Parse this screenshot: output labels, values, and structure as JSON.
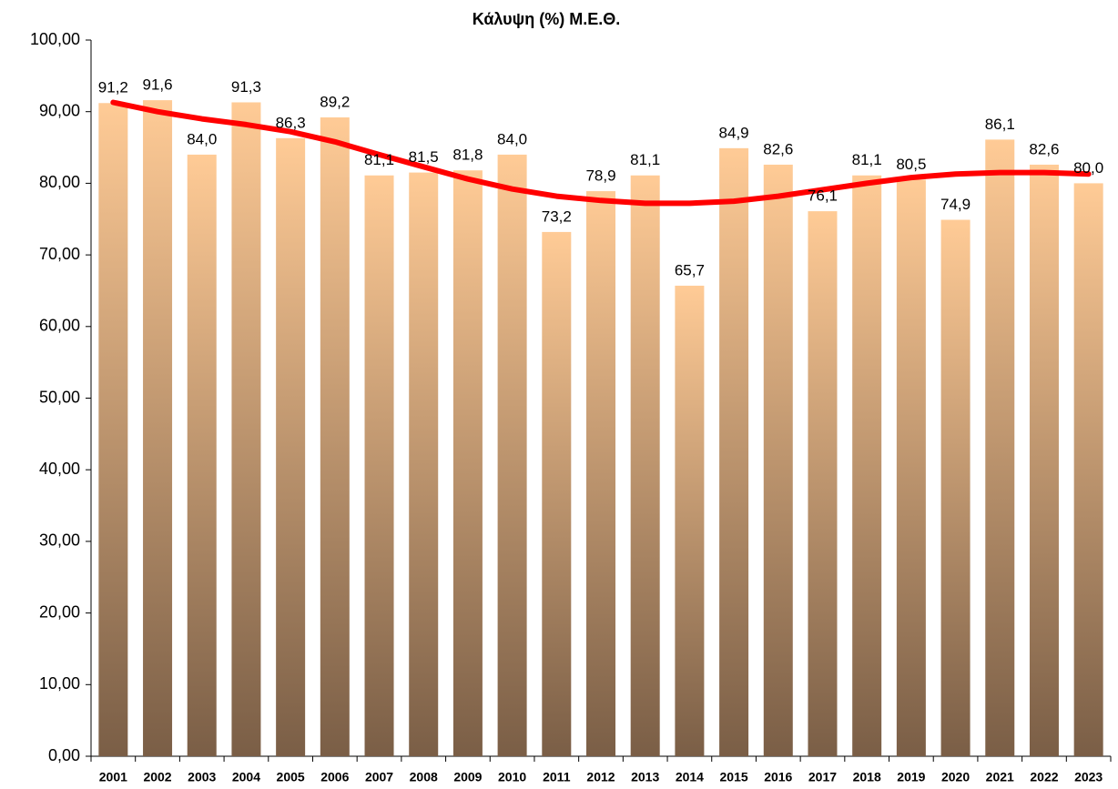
{
  "chart_data": {
    "type": "bar",
    "title": "Κάλυψη (%) Μ.Ε.Θ.",
    "categories": [
      "2001",
      "2002",
      "2003",
      "2004",
      "2005",
      "2006",
      "2007",
      "2008",
      "2009",
      "2010",
      "2011",
      "2012",
      "2013",
      "2014",
      "2015",
      "2016",
      "2017",
      "2018",
      "2019",
      "2020",
      "2021",
      "2022",
      "2023"
    ],
    "values": [
      91.2,
      91.6,
      84.0,
      91.3,
      86.3,
      89.2,
      81.1,
      81.5,
      81.8,
      84.0,
      73.2,
      78.9,
      81.1,
      65.7,
      84.9,
      82.6,
      76.1,
      81.1,
      80.5,
      74.9,
      86.1,
      82.6,
      80.0
    ],
    "value_labels": [
      "91,2",
      "91,6",
      "84,0",
      "91,3",
      "86,3",
      "89,2",
      "81,1",
      "81,5",
      "81,8",
      "84,0",
      "73,2",
      "78,9",
      "81,1",
      "65,7",
      "84,9",
      "82,6",
      "76,1",
      "81,1",
      "80,5",
      "74,9",
      "86,1",
      "82,6",
      "80,0"
    ],
    "gradient": [
      "#ffcb96",
      "#7a5e46"
    ],
    "trendline": {
      "color": "#ff0000",
      "values": [
        91.3,
        90.0,
        89.0,
        88.2,
        87.2,
        85.8,
        84.0,
        82.3,
        80.6,
        79.2,
        78.2,
        77.6,
        77.2,
        77.2,
        77.5,
        78.2,
        79.1,
        80.0,
        80.8,
        81.3,
        81.5,
        81.5,
        81.3
      ]
    },
    "ylim": [
      0,
      100
    ],
    "yticks": [
      {
        "value": 0,
        "label": "0,00"
      },
      {
        "value": 10,
        "label": "10,00"
      },
      {
        "value": 20,
        "label": "20,00"
      },
      {
        "value": 30,
        "label": "30,00"
      },
      {
        "value": 40,
        "label": "40,00"
      },
      {
        "value": 50,
        "label": "50,00"
      },
      {
        "value": 60,
        "label": "60,00"
      },
      {
        "value": 70,
        "label": "70,00"
      },
      {
        "value": 80,
        "label": "80,00"
      },
      {
        "value": 90,
        "label": "90,00"
      },
      {
        "value": 100,
        "label": "100,00"
      }
    ],
    "grid": false
  }
}
